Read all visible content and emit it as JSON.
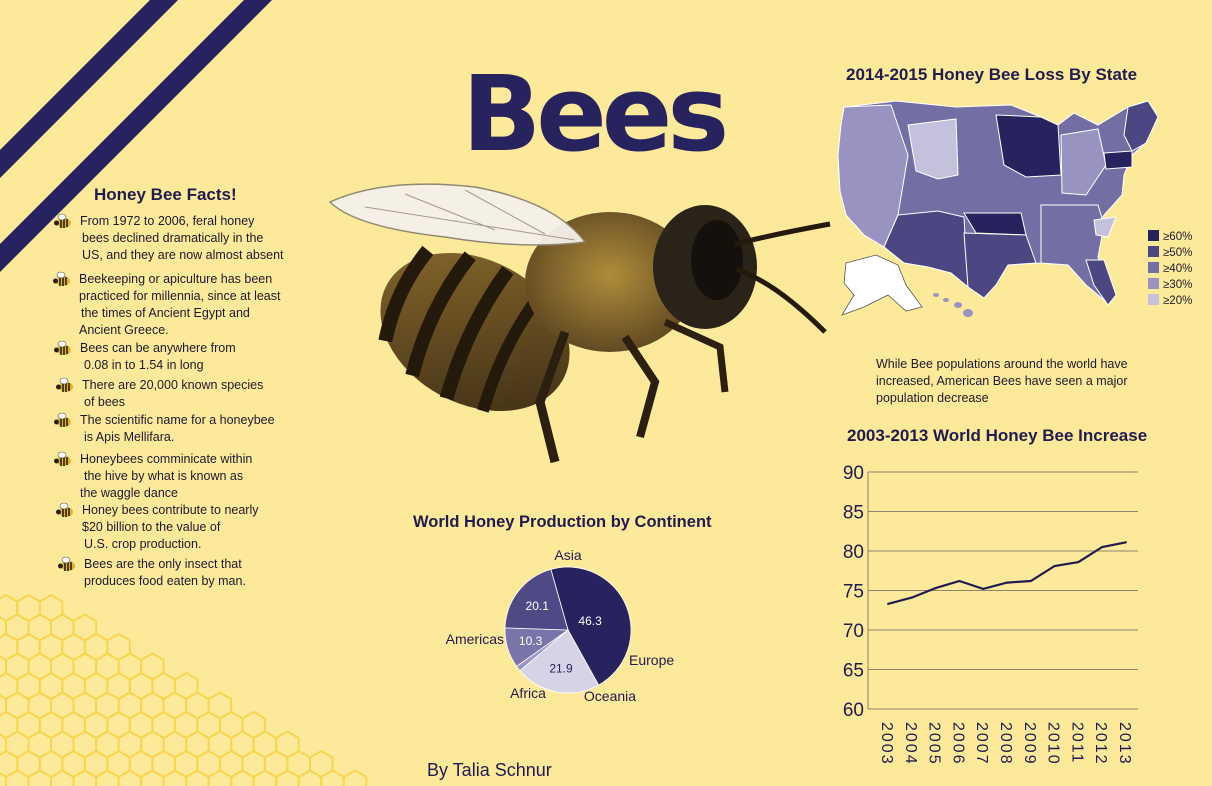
{
  "title": "Bees",
  "facts": {
    "heading": "Honey Bee Facts!",
    "items": [
      [
        "From 1972 to 2006, feral honey",
        "bees declined dramatically in the",
        "US, and they are now almost absent"
      ],
      [
        "Beekeeping or apiculture has been",
        "practiced for millennia, since at least",
        "the times of Ancient Egypt and",
        "Ancient Greece."
      ],
      [
        "Bees can be anywhere from",
        "0.08 in to 1.54 in long"
      ],
      [
        "There are 20,000 known species",
        "of bees"
      ],
      [
        "The scientific name for a honeybee",
        "is Apis Mellifara."
      ],
      [
        "Honeybees comminicate within",
        "the hive by what is known as",
        "the waggle dance"
      ],
      [
        "Honey bees contribute to nearly",
        "$20 billion to the value of",
        "U.S. crop production."
      ],
      [
        "Bees are the only insect that",
        "produces food eaten by man."
      ]
    ]
  },
  "map": {
    "title": "2014-2015 Honey Bee Loss By State",
    "legend": [
      "≥60%",
      "≥50%",
      "≥40%",
      "≥30%",
      "≥20%"
    ],
    "colors": [
      "#27235e",
      "#4c4783",
      "#736ea4",
      "#9893c1",
      "#c4c1dd"
    ],
    "note": [
      "While Bee populations around the world have",
      "increased, American Bees have seen a major",
      "population decrease"
    ]
  },
  "author": "By Talia Schnur",
  "colors": {
    "background": "#fde99a",
    "navy": "#27235e",
    "hex": "#f7d64f"
  },
  "chart_data": [
    {
      "type": "pie",
      "title": "World Honey Production by Continent",
      "slices": [
        {
          "label": "Asia",
          "value": 46.3,
          "color": "#27235e"
        },
        {
          "label": "Europe",
          "value": 21.9,
          "color": "#d6d3e6"
        },
        {
          "label": "Oceania",
          "value": 1.4,
          "color": "#9a95c2"
        },
        {
          "label": "Africa",
          "value": 10.3,
          "color": "#7a75a8"
        },
        {
          "label": "Americas",
          "value": 20.1,
          "color": "#4f4a85"
        }
      ]
    },
    {
      "type": "line",
      "title": "2003-2013 World Honey Bee Increase",
      "x": [
        "2003",
        "2004",
        "2005",
        "2006",
        "2007",
        "2008",
        "2009",
        "2010",
        "2011",
        "2012",
        "2013"
      ],
      "series": [
        {
          "values": [
            73.3,
            74.1,
            75.3,
            76.2,
            75.2,
            76.0,
            76.2,
            78.1,
            78.6,
            80.5,
            81.1
          ],
          "color": "#1f1c50"
        }
      ],
      "ylim": [
        60,
        90
      ],
      "yticks": [
        60,
        65,
        70,
        75,
        80,
        85,
        90
      ],
      "grid": true
    }
  ]
}
